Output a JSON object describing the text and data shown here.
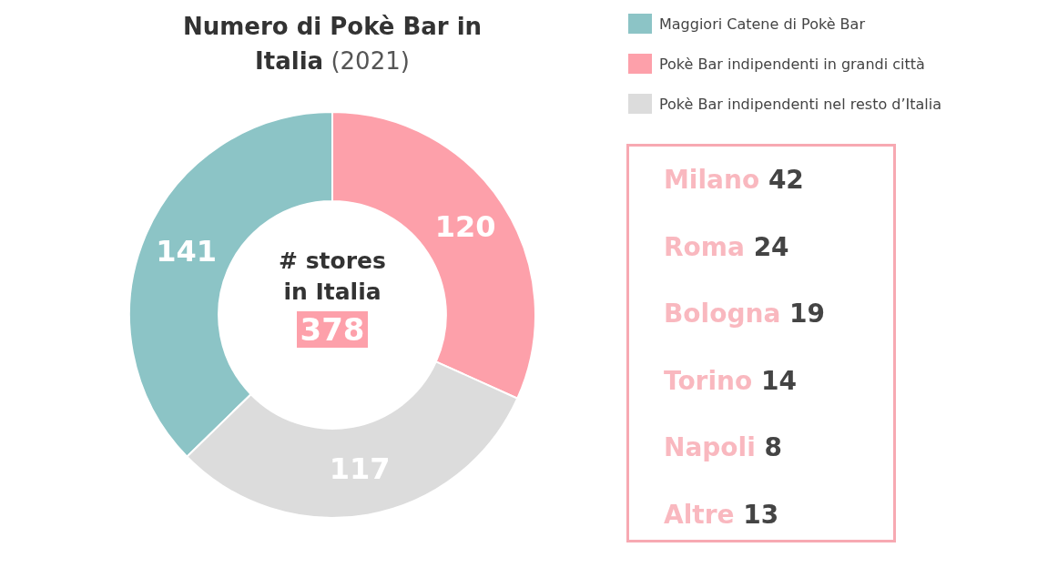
{
  "chart_data": [
    {
      "type": "donut",
      "title": "Numero di Pokè Bar in Italia",
      "subtitle": "(2021)",
      "categories": [
        "Maggiori Catene di Pokè Bar",
        "Pokè Bar indipendenti in grandi città",
        "Pokè Bar indipendenti nel resto d’Italia"
      ],
      "values": [
        141,
        120,
        117
      ],
      "colors": [
        "#8cc4c6",
        "#fda0aa",
        "#dcdcdc"
      ],
      "data_labels": true,
      "legend": "top right",
      "annotations": [
        "# stores in Italia",
        "378"
      ]
    },
    {
      "type": "other",
      "categories": [
        "Milano",
        "Roma",
        "Bologna",
        "Torino",
        "Napoli",
        "Altre"
      ],
      "values": [
        42,
        24,
        19,
        14,
        8,
        13
      ],
      "data_labels": true
    }
  ]
}
